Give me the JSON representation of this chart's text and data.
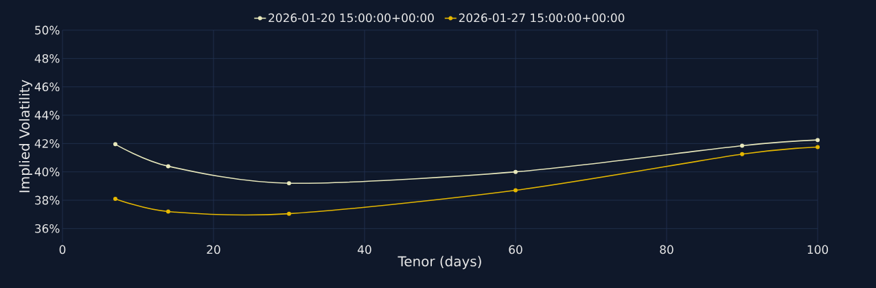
{
  "chart_data": {
    "type": "line",
    "xlabel": "Tenor (days)",
    "ylabel": "Implied Volatility",
    "xlim": [
      0,
      100
    ],
    "xticks": [
      0,
      20,
      40,
      60,
      80,
      100
    ],
    "ylim": [
      35,
      50
    ],
    "yticks": [
      {
        "value": 36,
        "label": "36%"
      },
      {
        "value": 38,
        "label": "38%"
      },
      {
        "value": 40,
        "label": "40%"
      },
      {
        "value": 42,
        "label": "42%"
      },
      {
        "value": 44,
        "label": "44%"
      },
      {
        "value": 46,
        "label": "46%"
      },
      {
        "value": 48,
        "label": "48%"
      },
      {
        "value": 50,
        "label": "50%"
      }
    ],
    "grid": true,
    "legend": "top",
    "marker": "circle",
    "line_style": "solid",
    "series": [
      {
        "name": "2026-01-20 15:00:00+00:00",
        "color": "#e8e8bc",
        "x": [
          7,
          14,
          30,
          60,
          90,
          100
        ],
        "values": [
          41.95,
          40.4,
          39.2,
          40.0,
          41.85,
          42.25
        ]
      },
      {
        "name": "2026-01-27 15:00:00+00:00",
        "color": "#e6b800",
        "x": [
          7,
          14,
          30,
          60,
          90,
          100
        ],
        "values": [
          38.1,
          37.2,
          37.05,
          38.7,
          41.25,
          41.75
        ]
      }
    ]
  }
}
